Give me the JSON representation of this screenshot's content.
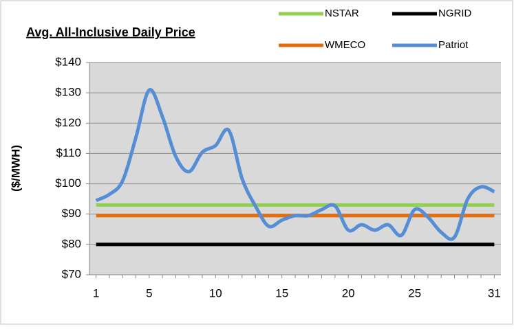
{
  "chart_data": {
    "type": "line",
    "title": "Avg. All-Inclusive  Daily Price",
    "y_label": "($/MWH)",
    "categories": [
      1,
      null,
      null,
      null,
      5,
      null,
      null,
      null,
      null,
      10,
      null,
      null,
      null,
      null,
      15,
      null,
      null,
      null,
      null,
      20,
      null,
      null,
      null,
      null,
      25,
      null,
      null,
      null,
      null,
      null,
      31
    ],
    "series": [
      {
        "name": "NSTAR",
        "color": "#92d050",
        "values": [
          93,
          93,
          93,
          93,
          93,
          93,
          93,
          93,
          93,
          93,
          93,
          93,
          93,
          93,
          93,
          93,
          93,
          93,
          93,
          93,
          93,
          93,
          93,
          93,
          93,
          93,
          93,
          93,
          93,
          93,
          93
        ]
      },
      {
        "name": "NGRID",
        "color": "#000000",
        "values": [
          80,
          80,
          80,
          80,
          80,
          80,
          80,
          80,
          80,
          80,
          80,
          80,
          80,
          80,
          80,
          80,
          80,
          80,
          80,
          80,
          80,
          80,
          80,
          80,
          80,
          80,
          80,
          80,
          80,
          80,
          80
        ]
      },
      {
        "name": "WMECO",
        "color": "#e46c0a",
        "values": [
          89.5,
          89.5,
          89.5,
          89.5,
          89.5,
          89.5,
          89.5,
          89.5,
          89.5,
          89.5,
          89.5,
          89.5,
          89.5,
          89.5,
          89.5,
          89.5,
          89.5,
          89.5,
          89.5,
          89.5,
          89.5,
          89.5,
          89.5,
          89.5,
          89.5,
          89.5,
          89.5,
          89.5,
          89.5,
          89.5,
          89.5
        ]
      },
      {
        "name": "Patriot",
        "color": "#558ed5",
        "values": [
          94.5,
          96.5,
          101,
          115.3,
          130.9,
          122.1,
          109,
          104,
          110.4,
          112.6,
          117.6,
          101.7,
          92.7,
          86,
          88,
          89.5,
          89.5,
          91.5,
          92.7,
          84.7,
          86.5,
          84.7,
          86.5,
          83,
          91.5,
          89,
          84,
          82.4,
          95,
          99,
          97.4
        ]
      }
    ],
    "ylim": [
      70,
      140
    ],
    "yticks": [
      {
        "value": 70,
        "label": "$70"
      },
      {
        "value": 80,
        "label": "$80"
      },
      {
        "value": 90,
        "label": "$90"
      },
      {
        "value": 100,
        "label": "$100"
      },
      {
        "value": 110,
        "label": "$110"
      },
      {
        "value": 120,
        "label": "$120"
      },
      {
        "value": 130,
        "label": "$130"
      },
      {
        "value": 140,
        "label": "$140"
      }
    ],
    "grid": true,
    "legend": "top"
  }
}
